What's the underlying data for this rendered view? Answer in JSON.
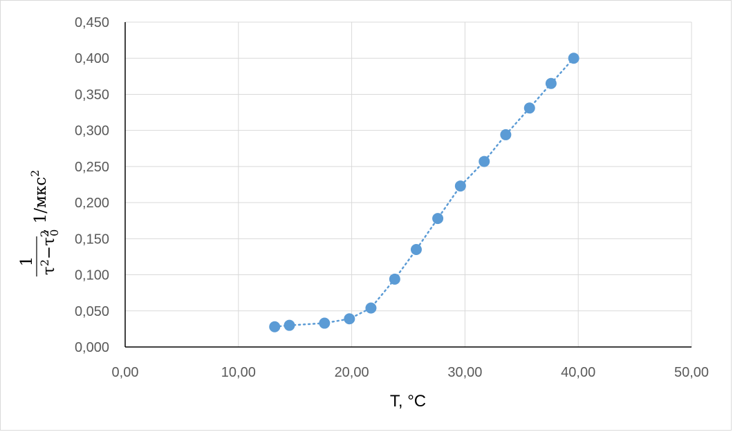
{
  "chart_data": {
    "type": "scatter",
    "title": "",
    "xlabel": "T, °C",
    "ylabel": "1/(τ²−τ₀²), 1/мкс²",
    "ylabel_parts": {
      "num": "1",
      "den_tau": "τ",
      "den_tau0": "τ",
      "sup": "2",
      "sub0": "0",
      "minus": "−",
      "unit": ", 1/мкс",
      "unit_sup": "2"
    },
    "xlim": [
      0,
      50
    ],
    "ylim": [
      0,
      0.45
    ],
    "x_ticks": [
      "0,00",
      "10,00",
      "20,00",
      "30,00",
      "40,00",
      "50,00"
    ],
    "y_ticks": [
      "0,000",
      "0,050",
      "0,100",
      "0,150",
      "0,200",
      "0,250",
      "0,300",
      "0,350",
      "0,400",
      "0,450"
    ],
    "grid": true,
    "line_style": "dotted",
    "color": "#5b9bd5",
    "series": [
      {
        "x": [
          13.2,
          14.5,
          17.6,
          19.8,
          21.7,
          23.8,
          25.7,
          27.6,
          29.6,
          31.7,
          33.6,
          35.7,
          37.6,
          39.6
        ],
        "y": [
          0.028,
          0.03,
          0.033,
          0.039,
          0.054,
          0.094,
          0.135,
          0.178,
          0.223,
          0.257,
          0.294,
          0.331,
          0.365,
          0.4
        ]
      }
    ]
  }
}
